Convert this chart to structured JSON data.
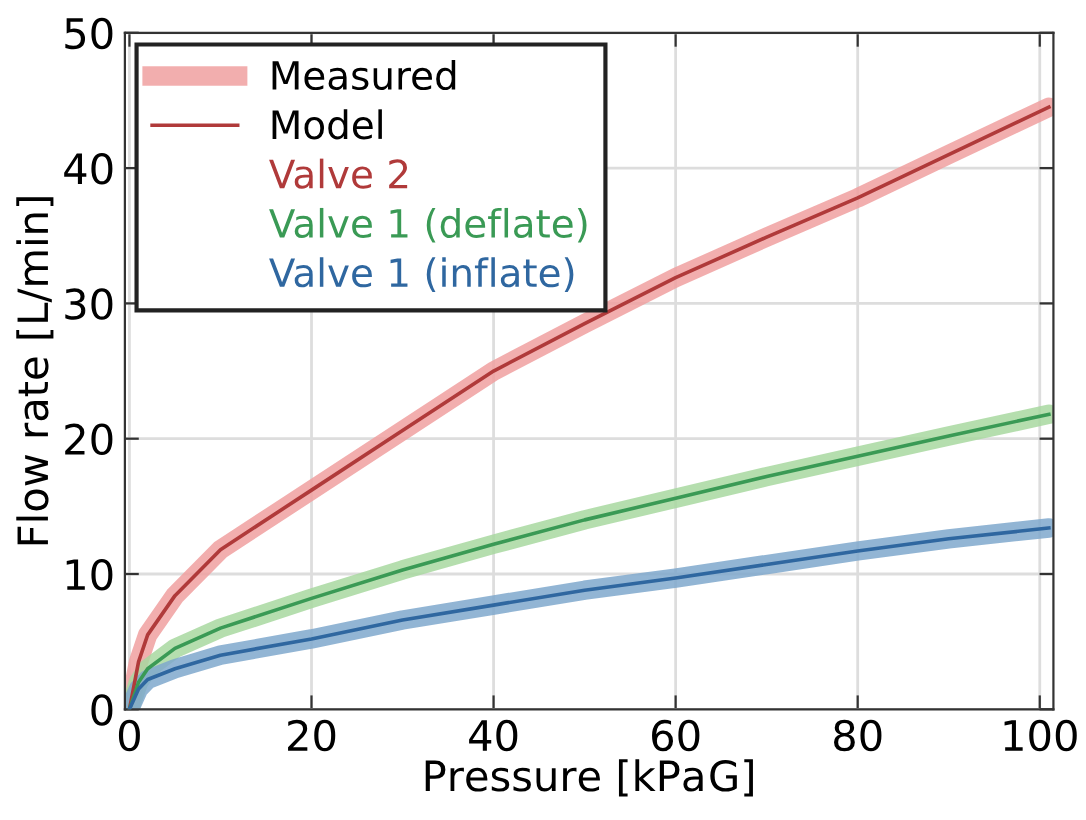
{
  "chart_data": {
    "type": "line",
    "xlabel": "Pressure [kPa$_{}$G]",
    "ylabel": "Flow rate [L/min]",
    "xlim": [
      -0.5,
      101.5
    ],
    "ylim": [
      0,
      50
    ],
    "xticks": [
      0,
      20,
      40,
      60,
      80,
      100
    ],
    "yticks": [
      0,
      10,
      20,
      30,
      40,
      50
    ],
    "grid": true,
    "legend": "top left",
    "annotations": [
      "Measured",
      "Model"
    ],
    "series": [
      {
        "color": "#f0a0a0",
        "x": [
          0,
          1,
          2,
          5,
          10,
          20,
          30,
          40,
          50,
          60,
          70,
          80,
          90,
          101
        ],
        "values": [
          0,
          3.5,
          5.5,
          8.4,
          11.8,
          16.2,
          20.6,
          25,
          28.5,
          31.9,
          34.9,
          37.8,
          41,
          44.5
        ]
      },
      {
        "name": "Valve 2",
        "color": "#b03a3a",
        "x": [
          0,
          1,
          2,
          5,
          10,
          20,
          30,
          40,
          50,
          60,
          70,
          80,
          90,
          101
        ],
        "values": [
          0,
          3.5,
          5.5,
          8.4,
          11.8,
          16.2,
          20.6,
          25,
          28.5,
          31.9,
          34.9,
          37.8,
          41,
          44.5
        ]
      },
      {
        "color": "#a8d8a0",
        "x": [
          0,
          1,
          2,
          5,
          10,
          20,
          30,
          40,
          50,
          60,
          70,
          80,
          90,
          101
        ],
        "values": [
          0,
          2,
          3,
          4.5,
          6,
          8.2,
          10.3,
          12.2,
          14,
          15.6,
          17.2,
          18.7,
          20.2,
          21.8
        ]
      },
      {
        "name": "Valve 1 (deflate)",
        "color": "#3a9a55",
        "x": [
          0,
          1,
          2,
          5,
          10,
          20,
          30,
          40,
          50,
          60,
          70,
          80,
          90,
          101
        ],
        "values": [
          0,
          2,
          3,
          4.5,
          6,
          8.2,
          10.3,
          12.2,
          14,
          15.6,
          17.2,
          18.7,
          20.2,
          21.8
        ]
      },
      {
        "color": "#7fa8cc",
        "x": [
          0,
          1,
          2,
          5,
          10,
          20,
          30,
          40,
          50,
          60,
          70,
          80,
          90,
          101
        ],
        "values": [
          0,
          1.5,
          2.2,
          3,
          4,
          5.2,
          6.6,
          7.7,
          8.8,
          9.7,
          10.7,
          11.7,
          12.6,
          13.4
        ]
      },
      {
        "name": "Valve 1 (inflate)",
        "color": "#2f67a0",
        "x": [
          0,
          1,
          2,
          5,
          10,
          20,
          30,
          40,
          50,
          60,
          70,
          80,
          90,
          101
        ],
        "values": [
          0,
          1.5,
          2.2,
          3,
          4,
          5.2,
          6.6,
          7.7,
          8.8,
          9.7,
          10.7,
          11.7,
          12.6,
          13.4
        ]
      }
    ]
  }
}
